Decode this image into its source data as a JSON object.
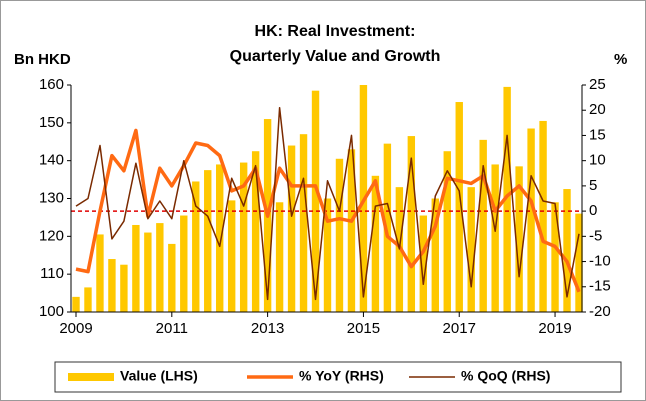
{
  "chart_data": {
    "type": "combo",
    "title": [
      "HK: Real Investment:",
      "Quarterly Value and Growth"
    ],
    "y_label": "Bn HKD",
    "y2_label": "%",
    "categories": [
      "2009",
      null,
      null,
      null,
      null,
      null,
      null,
      null,
      "2011",
      null,
      null,
      null,
      null,
      null,
      null,
      null,
      "2013",
      null,
      null,
      null,
      null,
      null,
      null,
      null,
      "2015",
      null,
      null,
      null,
      null,
      null,
      null,
      null,
      "2017",
      null,
      null,
      null,
      null,
      null,
      null,
      null,
      "2019",
      null,
      null
    ],
    "ylim": [
      100,
      160
    ],
    "yticks": [
      100,
      110,
      120,
      130,
      140,
      150,
      160
    ],
    "y2lim": [
      -20,
      25
    ],
    "y2ticks": [
      -20,
      -15,
      -10,
      -5,
      0,
      5,
      10,
      15,
      20,
      25
    ],
    "reference_line": {
      "value": 0,
      "axis": "y2",
      "color": "#e00000"
    },
    "legend": "bottom",
    "series": [
      {
        "name": "Value (LHS)",
        "type": "bar",
        "color": "#ffc800",
        "values": [
          104,
          106.5,
          120.5,
          114,
          112.5,
          123,
          121,
          123.5,
          118,
          125.5,
          134.5,
          137.5,
          139,
          129.5,
          139.5,
          142.5,
          151,
          129,
          144,
          147,
          158.5,
          130,
          140.5,
          143,
          160,
          136,
          144.5,
          133,
          146.5,
          125.5,
          130,
          142.5,
          155.5,
          133,
          145.5,
          139,
          159.5,
          138.5,
          148.5,
          150.5,
          129,
          132.5,
          126
        ]
      },
      {
        "name": "% YoY (RHS)",
        "type": "line",
        "axis": "y2",
        "color": "#ff6a13",
        "values": [
          -11.5,
          -12,
          0,
          11,
          8,
          16,
          -1,
          8.5,
          5,
          9,
          13.5,
          13,
          11,
          4,
          5,
          8.5,
          -1,
          8.5,
          5,
          5,
          5,
          -2,
          -1.5,
          -2,
          2,
          6,
          -5,
          -7,
          -11,
          -8,
          -3,
          6.5,
          6,
          5.5,
          7,
          0,
          3,
          5,
          2,
          -6,
          -7,
          -10,
          -16
        ]
      },
      {
        "name": "% QoQ (RHS)",
        "type": "line",
        "axis": "y2",
        "color": "#7a2a00",
        "values": [
          1,
          2.5,
          13,
          -5.5,
          -2,
          9.5,
          -1.5,
          2,
          -1.5,
          10,
          1,
          -1,
          -7,
          6.5,
          1,
          9,
          -17.5,
          20.5,
          -1,
          6.5,
          -17.5,
          6,
          0,
          15,
          -17,
          1,
          1.5,
          -7.5,
          10.5,
          -14.5,
          3,
          8,
          4,
          -15,
          9,
          -4,
          15,
          -13,
          7,
          2,
          1.5,
          -17,
          -4.5
        ]
      }
    ]
  }
}
